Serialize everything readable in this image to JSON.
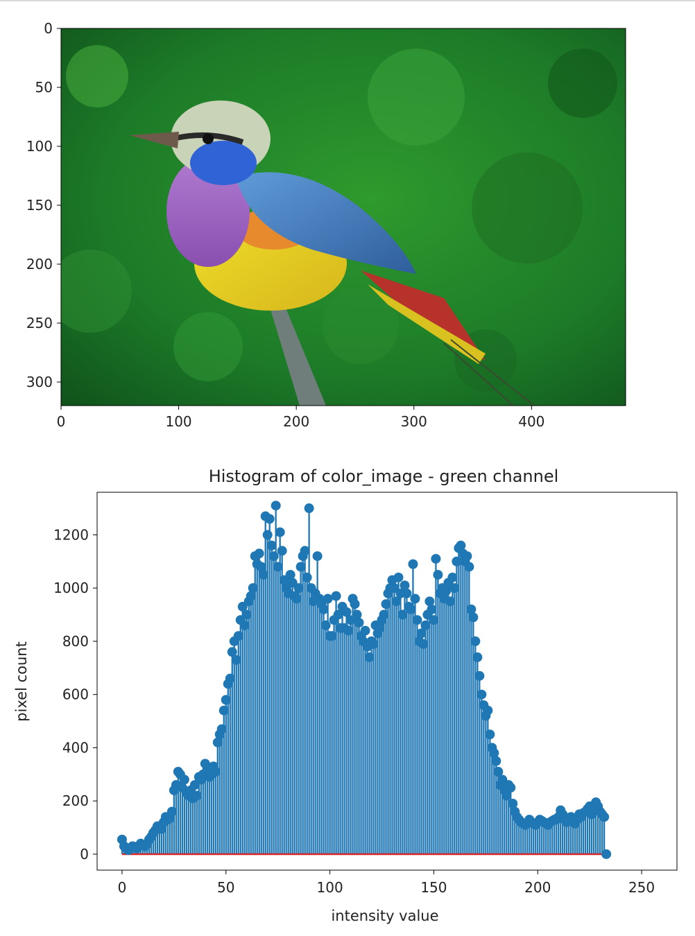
{
  "chart_data": [
    {
      "type": "image",
      "x_ticks": [
        0,
        100,
        200,
        300,
        400
      ],
      "y_ticks": [
        0,
        50,
        100,
        150,
        200,
        250,
        300
      ],
      "xlim": [
        0,
        480
      ],
      "ylim": [
        320,
        0
      ],
      "image_subject": "perched-bird",
      "colors": {
        "background": "#1f8a2a",
        "head": "#c9d3b8",
        "throat_blue": "#2f63d6",
        "breast_purple": "#a56cc6",
        "belly_yellow": "#e6cf21",
        "wing_blue": "#4f86c6",
        "tail_red": "#b8322c",
        "branch": "#6f7e7a"
      }
    },
    {
      "type": "stem",
      "title": "Histogram of color_image - green channel",
      "xlabel": "intensity value",
      "ylabel": "pixel count",
      "xlim": [
        -12,
        267
      ],
      "ylim": [
        -60,
        1360
      ],
      "x_ticks": [
        0,
        50,
        100,
        150,
        200,
        250
      ],
      "y_ticks": [
        0,
        200,
        400,
        600,
        800,
        1000,
        1200
      ],
      "colors": {
        "stem": "#1f77b4",
        "baseline": "#d62728"
      },
      "x_start": 0,
      "values": [
        55,
        30,
        22,
        15,
        20,
        30,
        28,
        22,
        30,
        40,
        35,
        30,
        38,
        55,
        65,
        80,
        90,
        105,
        100,
        95,
        120,
        140,
        130,
        135,
        160,
        240,
        260,
        310,
        300,
        250,
        280,
        230,
        220,
        240,
        210,
        260,
        220,
        290,
        280,
        300,
        340,
        320,
        290,
        300,
        330,
        310,
        420,
        450,
        470,
        540,
        580,
        640,
        660,
        760,
        800,
        730,
        820,
        880,
        930,
        860,
        900,
        950,
        970,
        1000,
        1120,
        1090,
        1130,
        1080,
        1050,
        1270,
        1200,
        1260,
        1160,
        1120,
        1310,
        1080,
        1210,
        1140,
        1030,
        1000,
        980,
        1050,
        1020,
        970,
        960,
        1000,
        1080,
        1120,
        1140,
        1040,
        1300,
        1000,
        950,
        980,
        1120,
        960,
        940,
        920,
        860,
        960,
        820,
        820,
        880,
        970,
        900,
        850,
        930,
        850,
        910,
        840,
        880,
        960,
        940,
        900,
        870,
        820,
        800,
        840,
        780,
        740,
        800,
        790,
        860,
        830,
        850,
        880,
        900,
        940,
        980,
        1000,
        1030,
        1000,
        950,
        1040,
        980,
        900,
        1010,
        980,
        930,
        920,
        1090,
        960,
        880,
        800,
        830,
        790,
        860,
        900,
        950,
        920,
        880,
        1110,
        1050,
        980,
        1000,
        960,
        990,
        1020,
        950,
        1040,
        1000,
        1100,
        1150,
        1160,
        1130,
        1100,
        1120,
        1080,
        920,
        890,
        800,
        740,
        670,
        600,
        560,
        520,
        540,
        450,
        400,
        380,
        350,
        310,
        260,
        280,
        240,
        220,
        260,
        250,
        190,
        160,
        140,
        130,
        120,
        115,
        110,
        120,
        130,
        120,
        115,
        110,
        120,
        130,
        125,
        120,
        115,
        110,
        120,
        125,
        130,
        130,
        140,
        165,
        150,
        130,
        120,
        135,
        140,
        125,
        115,
        130,
        150,
        140,
        155,
        160,
        170,
        180,
        150,
        160,
        195,
        180,
        160,
        150,
        140,
        0
      ]
    }
  ]
}
